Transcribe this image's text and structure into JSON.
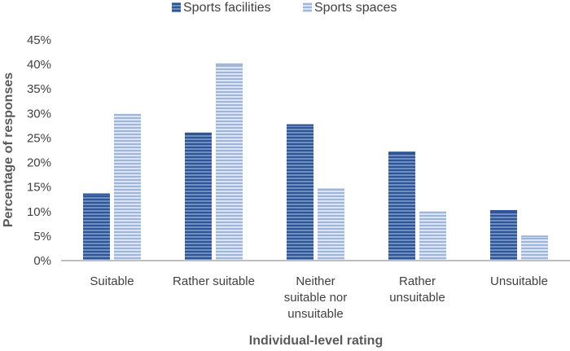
{
  "chart_data": {
    "type": "bar",
    "title": "",
    "xlabel": "Individual-level rating",
    "ylabel": "Percentage of responses",
    "ylim": [
      0,
      45
    ],
    "y_ticks": [
      "0%",
      "5%",
      "10%",
      "15%",
      "20%",
      "25%",
      "30%",
      "35%",
      "40%",
      "45%"
    ],
    "grid": false,
    "legend_position": "top",
    "categories": [
      [
        "Suitable"
      ],
      [
        "Rather suitable"
      ],
      [
        "Neither",
        "suitable nor",
        "unsuitable"
      ],
      [
        "Rather",
        "unsuitable"
      ],
      [
        "Unsuitable"
      ]
    ],
    "series": [
      {
        "name": "Sports facilities",
        "color": "#4a70ab",
        "values": [
          13.7,
          26.1,
          27.8,
          22.2,
          10.3
        ]
      },
      {
        "name": "Sports spaces",
        "color": "#b3c5e3",
        "values": [
          29.9,
          40.2,
          14.7,
          10.0,
          5.1
        ]
      }
    ]
  }
}
